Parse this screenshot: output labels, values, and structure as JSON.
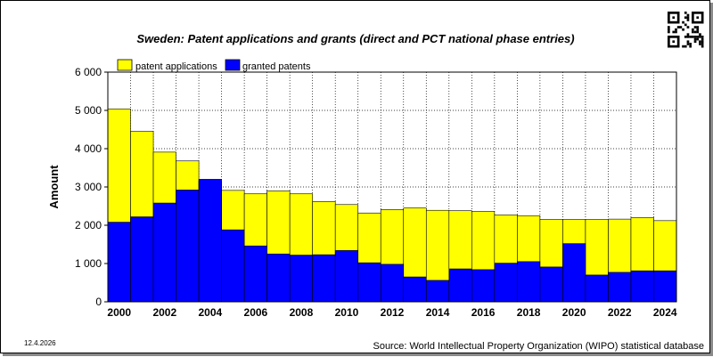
{
  "chart_data": {
    "type": "bar",
    "stacked": "overlay",
    "title": "Sweden: Patent applications and grants (direct and PCT national phase entries)",
    "ylabel": "Amount",
    "xlabel": "",
    "ylim": [
      0,
      6000
    ],
    "yticks": [
      0,
      1000,
      2000,
      3000,
      4000,
      5000,
      6000
    ],
    "ytick_labels": [
      "0",
      "1 000",
      "2 000",
      "3 000",
      "4 000",
      "5 000",
      "6 000"
    ],
    "xtick_labels": [
      "2000",
      "2002",
      "2004",
      "2006",
      "2008",
      "2010",
      "2012",
      "2014",
      "2016",
      "2018",
      "2020",
      "2022",
      "2024"
    ],
    "categories": [
      2000,
      2001,
      2002,
      2003,
      2004,
      2005,
      2006,
      2007,
      2008,
      2009,
      2010,
      2011,
      2012,
      2013,
      2014,
      2015,
      2016,
      2017,
      2018,
      2019,
      2020,
      2021,
      2022,
      2023,
      2024
    ],
    "grid": true,
    "legend_position": "top-left",
    "series": [
      {
        "name": "patent applications",
        "color": "#ffff00",
        "values": [
          5040,
          4450,
          3910,
          3680,
          3150,
          2910,
          2820,
          2900,
          2820,
          2620,
          2540,
          2320,
          2410,
          2450,
          2390,
          2380,
          2360,
          2270,
          2250,
          2150,
          2150,
          2150,
          2160,
          2200,
          2120
        ]
      },
      {
        "name": "granted patents",
        "color": "#0000ff",
        "values": [
          2080,
          2220,
          2580,
          2920,
          3200,
          1880,
          1460,
          1250,
          1220,
          1230,
          1340,
          1020,
          980,
          650,
          560,
          860,
          840,
          1010,
          1050,
          910,
          1520,
          700,
          770,
          810,
          810
        ]
      }
    ],
    "date": "12.4.2026",
    "source": "Source: World Intellectual Property Organization (WIPO) statistical database"
  }
}
